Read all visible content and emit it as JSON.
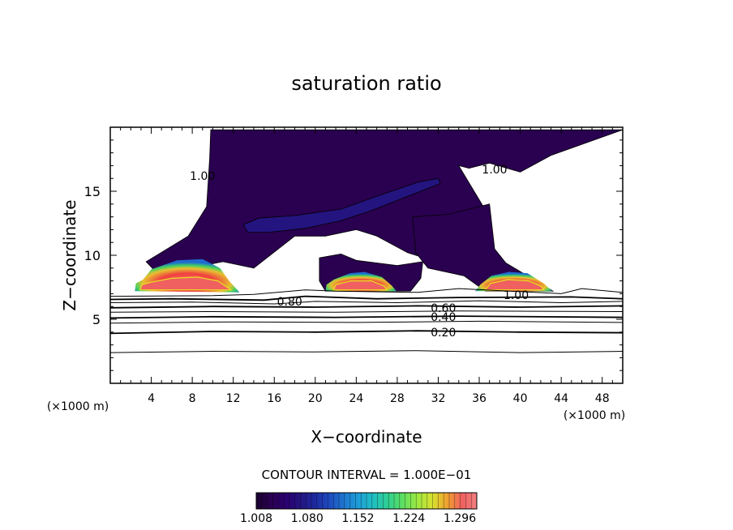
{
  "chart_data": {
    "type": "heatmap",
    "title": "saturation ratio",
    "xlabel": "X−coordinate",
    "ylabel": "Z−coordinate",
    "x_unit_left": "(×1000 m)",
    "x_unit_right": "(×1000 m)",
    "xlim": [
      0,
      50
    ],
    "ylim": [
      0,
      20
    ],
    "x_ticks": [
      "4",
      "8",
      "12",
      "16",
      "20",
      "24",
      "28",
      "32",
      "36",
      "40",
      "44",
      "48"
    ],
    "x_tick_values": [
      4,
      8,
      12,
      16,
      20,
      24,
      28,
      32,
      36,
      40,
      44,
      48
    ],
    "y_ticks": [
      "5",
      "10",
      "15"
    ],
    "y_tick_values": [
      5,
      10,
      15
    ],
    "contour_interval_text": "CONTOUR INTERVAL = 1.000E−01",
    "contour_labels": [
      {
        "text": "1.00",
        "x": 9.0,
        "y": 16.2
      },
      {
        "text": "1.00",
        "x": 37.5,
        "y": 16.7
      },
      {
        "text": "1.00",
        "x": 39.6,
        "y": 6.9
      },
      {
        "text": "0.80",
        "x": 17.5,
        "y": 6.4
      },
      {
        "text": "0.60",
        "x": 32.5,
        "y": 5.9
      },
      {
        "text": "0.40",
        "x": 32.5,
        "y": 5.2
      },
      {
        "text": "0.20",
        "x": 32.5,
        "y": 4.0
      }
    ],
    "contours": [
      {
        "level": 0.1,
        "points": [
          [
            0,
            2.4
          ],
          [
            10,
            2.5
          ],
          [
            20,
            2.45
          ],
          [
            30,
            2.55
          ],
          [
            40,
            2.4
          ],
          [
            50,
            2.5
          ]
        ]
      },
      {
        "level": 0.2,
        "points": [
          [
            0,
            3.9
          ],
          [
            10,
            4.05
          ],
          [
            20,
            4.0
          ],
          [
            30,
            4.1
          ],
          [
            40,
            4.0
          ],
          [
            50,
            3.95
          ]
        ]
      },
      {
        "level": 0.3,
        "points": [
          [
            0,
            4.7
          ],
          [
            12,
            4.8
          ],
          [
            24,
            4.75
          ],
          [
            36,
            4.85
          ],
          [
            50,
            4.75
          ]
        ]
      },
      {
        "level": 0.4,
        "points": [
          [
            0,
            5.1
          ],
          [
            10,
            5.2
          ],
          [
            22,
            5.15
          ],
          [
            34,
            5.25
          ],
          [
            50,
            5.15
          ]
        ]
      },
      {
        "level": 0.5,
        "points": [
          [
            0,
            5.55
          ],
          [
            10,
            5.6
          ],
          [
            22,
            5.55
          ],
          [
            34,
            5.65
          ],
          [
            50,
            5.6
          ]
        ]
      },
      {
        "level": 0.6,
        "points": [
          [
            0,
            5.9
          ],
          [
            10,
            6.0
          ],
          [
            20,
            5.95
          ],
          [
            30,
            6.05
          ],
          [
            40,
            5.95
          ],
          [
            50,
            6.05
          ]
        ]
      },
      {
        "level": 0.7,
        "points": [
          [
            0,
            6.3
          ],
          [
            8,
            6.35
          ],
          [
            16,
            6.2
          ],
          [
            20,
            6.4
          ],
          [
            28,
            6.3
          ],
          [
            36,
            6.45
          ],
          [
            44,
            6.3
          ],
          [
            50,
            6.4
          ]
        ]
      },
      {
        "level": 0.8,
        "points": [
          [
            0,
            6.55
          ],
          [
            6,
            6.6
          ],
          [
            15,
            6.5
          ],
          [
            19,
            6.8
          ],
          [
            26,
            6.6
          ],
          [
            34,
            6.7
          ],
          [
            45,
            6.75
          ],
          [
            50,
            6.6
          ]
        ]
      },
      {
        "level": 0.9,
        "points": [
          [
            0,
            6.8
          ],
          [
            10,
            6.85
          ],
          [
            14,
            6.95
          ],
          [
            19,
            7.3
          ],
          [
            22,
            7.2
          ],
          [
            30,
            7.1
          ],
          [
            34,
            7.4
          ],
          [
            44,
            7.0
          ],
          [
            46,
            7.4
          ],
          [
            50,
            7.1
          ]
        ]
      }
    ],
    "field_regions": [
      {
        "name": "upper saturated region",
        "value": 1.02,
        "points": [
          [
            9.8,
            19.8
          ],
          [
            50,
            19.8
          ],
          [
            43,
            17.8
          ],
          [
            40,
            16.5
          ],
          [
            37,
            17.2
          ],
          [
            35,
            16.8
          ],
          [
            34,
            17.0
          ],
          [
            37,
            13.0
          ],
          [
            37,
            10.0
          ],
          [
            33,
            9.2
          ],
          [
            29,
            10.2
          ],
          [
            26,
            11.5
          ],
          [
            24,
            12.0
          ],
          [
            21,
            11.5
          ],
          [
            18,
            11.5
          ],
          [
            14,
            9.0
          ],
          [
            11,
            9.5
          ],
          [
            4.7,
            8.5
          ],
          [
            3.5,
            9.5
          ],
          [
            7.6,
            11.5
          ],
          [
            9.4,
            13.8
          ],
          [
            9.7,
            17.6
          ]
        ]
      },
      {
        "name": "right saturated region",
        "value": 1.02,
        "points": [
          [
            37,
            14.0
          ],
          [
            37.5,
            10.5
          ],
          [
            38.6,
            9.4
          ],
          [
            43.2,
            7.2
          ],
          [
            36.6,
            7.2
          ],
          [
            34.5,
            8.4
          ],
          [
            31,
            9.0
          ],
          [
            29.8,
            10.2
          ],
          [
            29.5,
            13.0
          ],
          [
            33,
            13.2
          ]
        ]
      },
      {
        "name": "middle saturated region",
        "value": 1.03,
        "points": [
          [
            20.4,
            9.8
          ],
          [
            22.5,
            10.1
          ],
          [
            24,
            9.6
          ],
          [
            28,
            9.2
          ],
          [
            30.5,
            9.5
          ],
          [
            30.3,
            8.2
          ],
          [
            29.3,
            7.2
          ],
          [
            21.0,
            7.2
          ],
          [
            20.4,
            8.0
          ]
        ]
      },
      {
        "name": "left updraft core",
        "value": 1.2,
        "points": [
          [
            2.4,
            7.2
          ],
          [
            2.5,
            7.8
          ],
          [
            3.2,
            8.1
          ],
          [
            4,
            8.9
          ],
          [
            6.5,
            9.6
          ],
          [
            9,
            9.7
          ],
          [
            10.7,
            9.0
          ],
          [
            11.6,
            8.0
          ],
          [
            12.4,
            7.3
          ],
          [
            12.6,
            7.1
          ]
        ]
      },
      {
        "name": "middle updraft core",
        "value": 1.2,
        "points": [
          [
            21.0,
            7.2
          ],
          [
            21.1,
            7.7
          ],
          [
            21.8,
            8.1
          ],
          [
            23.4,
            8.6
          ],
          [
            24.8,
            8.7
          ],
          [
            26.5,
            8.3
          ],
          [
            27.5,
            7.6
          ],
          [
            27.9,
            7.2
          ]
        ]
      },
      {
        "name": "right updraft core",
        "value": 1.2,
        "points": [
          [
            35.6,
            7.2
          ],
          [
            36.1,
            7.7
          ],
          [
            37.2,
            8.4
          ],
          [
            38.9,
            8.7
          ],
          [
            40.7,
            8.6
          ],
          [
            42.3,
            7.8
          ],
          [
            43.1,
            7.2
          ]
        ]
      },
      {
        "name": "anvil streak",
        "value": 1.06,
        "points": [
          [
            13.0,
            12.4
          ],
          [
            14.5,
            12.9
          ],
          [
            18.0,
            13.1
          ],
          [
            22.5,
            13.6
          ],
          [
            26.0,
            14.6
          ],
          [
            30.0,
            15.7
          ],
          [
            32.0,
            16.0
          ],
          [
            32.2,
            15.6
          ],
          [
            29.0,
            14.6
          ],
          [
            25.5,
            13.5
          ],
          [
            22.5,
            12.7
          ],
          [
            19.0,
            12.1
          ],
          [
            15.5,
            11.8
          ],
          [
            13.4,
            11.8
          ]
        ]
      }
    ],
    "hot_cores": [
      {
        "value": 1.3,
        "points": [
          [
            2.9,
            7.3
          ],
          [
            3.1,
            7.7
          ],
          [
            4.0,
            7.9
          ],
          [
            6.0,
            8.2
          ],
          [
            8.5,
            8.3
          ],
          [
            10.5,
            8.0
          ],
          [
            11.4,
            7.5
          ],
          [
            11.8,
            7.3
          ]
        ]
      },
      {
        "value": 1.3,
        "points": [
          [
            21.8,
            7.3
          ],
          [
            22.0,
            7.7
          ],
          [
            23.5,
            8.0
          ],
          [
            25.5,
            8.0
          ],
          [
            26.7,
            7.6
          ],
          [
            27.0,
            7.3
          ]
        ]
      },
      {
        "value": 1.3,
        "points": [
          [
            36.6,
            7.3
          ],
          [
            37.1,
            7.8
          ],
          [
            38.8,
            8.1
          ],
          [
            40.8,
            8.0
          ],
          [
            42.0,
            7.6
          ],
          [
            42.3,
            7.3
          ]
        ]
      }
    ],
    "colorbar": {
      "min": 1.008,
      "max": 1.32,
      "labels": [
        "1.008",
        "1.080",
        "1.152",
        "1.224",
        "1.296"
      ],
      "label_values": [
        1.008,
        1.08,
        1.152,
        1.224,
        1.296
      ],
      "colors": [
        "#1a0030",
        "#2a0050",
        "#2a0070",
        "#241480",
        "#1e2aa0",
        "#1e4cc0",
        "#1e78d0",
        "#1ea0d8",
        "#20c0c0",
        "#30d090",
        "#60e060",
        "#a0e840",
        "#d8e030",
        "#f0a030",
        "#f06060",
        "#f08080"
      ]
    }
  }
}
